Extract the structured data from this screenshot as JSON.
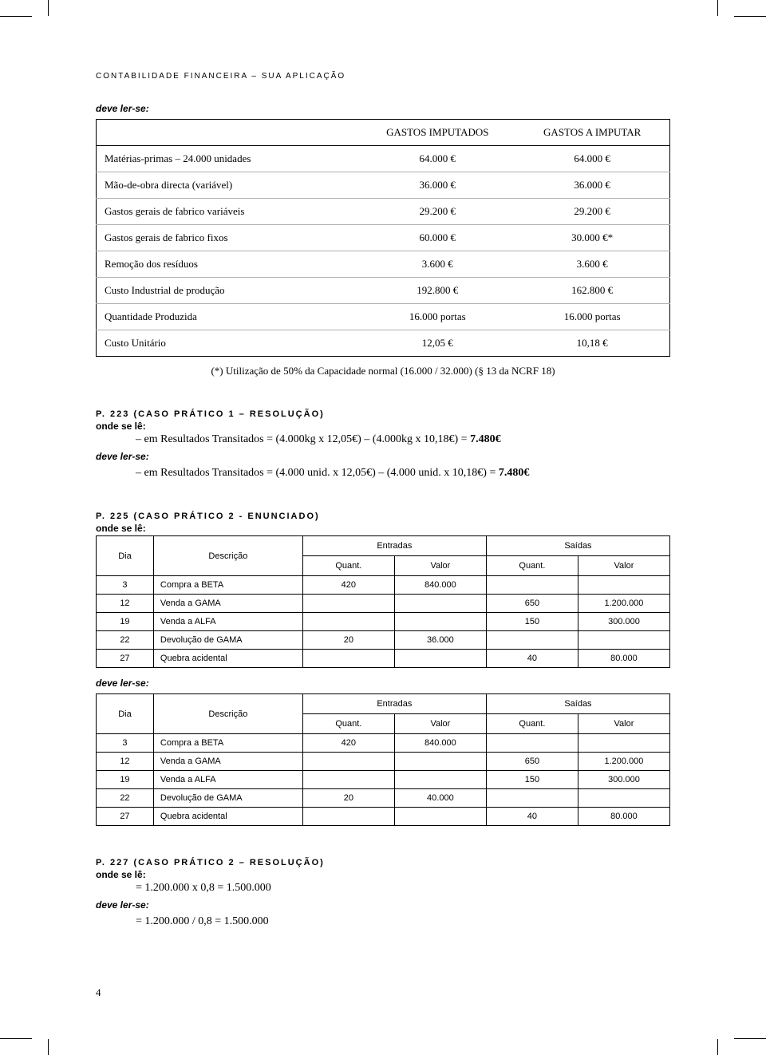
{
  "running_head": "CONTABILIDADE FINANCEIRA – SUA APLICAÇÃO",
  "deve_ler_se": "deve ler-se:",
  "onde_se_le": "onde se lê:",
  "page_number": "4",
  "table1": {
    "head_imputados": "GASTOS IMPUTADOS",
    "head_a_imputar": "GASTOS A IMPUTAR",
    "rows": [
      {
        "label": "Matérias-primas – 24.000 unidades",
        "a": "64.000 €",
        "b": "64.000 €"
      },
      {
        "label": "Mão-de-obra directa (variável)",
        "a": "36.000 €",
        "b": "36.000 €"
      },
      {
        "label": "Gastos gerais de fabrico variáveis",
        "a": "29.200 €",
        "b": "29.200 €"
      },
      {
        "label": "Gastos gerais de fabrico fixos",
        "a": "60.000 €",
        "b": "30.000 €*"
      },
      {
        "label": "Remoção dos resíduos",
        "a": "3.600 €",
        "b": "3.600 €"
      },
      {
        "label": "Custo Industrial de produção",
        "a": "192.800 €",
        "b": "162.800 €"
      },
      {
        "label": "Quantidade Produzida",
        "a": "16.000 portas",
        "b": "16.000 portas"
      },
      {
        "label": "Custo Unitário",
        "a": "12,05 €",
        "b": "10,18 €"
      }
    ],
    "footnote": "(*) Utilização de 50% da Capacidade normal (16.000 / 32.000) (§ 13 da NCRF 18)"
  },
  "p223": {
    "head": "P. 223 (CASO PRÁTICO 1 – RESOLUÇÃO)",
    "wrong": "– em Resultados Transitados = (4.000kg x 12,05€) – (4.000kg x 10,18€) = ",
    "wrong_b": "7.480€",
    "right": "– em Resultados Transitados = (4.000 unid. x 12,05€) – (4.000 unid. x 10,18€) = ",
    "right_b": "7.480€"
  },
  "p225": {
    "head": "P. 225 (CASO PRÁTICO 2 - ENUNCIADO)",
    "thead": {
      "dia": "Dia",
      "desc": "Descrição",
      "ent": "Entradas",
      "sai": "Saídas",
      "q": "Quant.",
      "v": "Valor"
    },
    "wrong_rows": [
      {
        "dia": "3",
        "desc": "Compra a BETA",
        "eq": "420",
        "ev": "840.000",
        "sq": "",
        "sv": ""
      },
      {
        "dia": "12",
        "desc": "Venda a GAMA",
        "eq": "",
        "ev": "",
        "sq": "650",
        "sv": "1.200.000"
      },
      {
        "dia": "19",
        "desc": "Venda a ALFA",
        "eq": "",
        "ev": "",
        "sq": "150",
        "sv": "300.000"
      },
      {
        "dia": "22",
        "desc": "Devolução de GAMA",
        "eq": "20",
        "ev": "36.000",
        "sq": "",
        "sv": ""
      },
      {
        "dia": "27",
        "desc": "Quebra acidental",
        "eq": "",
        "ev": "",
        "sq": "40",
        "sv": "80.000"
      }
    ],
    "right_rows": [
      {
        "dia": "3",
        "desc": "Compra a BETA",
        "eq": "420",
        "ev": "840.000",
        "sq": "",
        "sv": ""
      },
      {
        "dia": "12",
        "desc": "Venda a GAMA",
        "eq": "",
        "ev": "",
        "sq": "650",
        "sv": "1.200.000"
      },
      {
        "dia": "19",
        "desc": "Venda a ALFA",
        "eq": "",
        "ev": "",
        "sq": "150",
        "sv": "300.000"
      },
      {
        "dia": "22",
        "desc": "Devolução de GAMA",
        "eq": "20",
        "ev": "40.000",
        "sq": "",
        "sv": ""
      },
      {
        "dia": "27",
        "desc": "Quebra acidental",
        "eq": "",
        "ev": "",
        "sq": "40",
        "sv": "80.000"
      }
    ]
  },
  "p227": {
    "head": "P. 227 (CASO PRÁTICO 2 – RESOLUÇÃO)",
    "wrong": "= 1.200.000 x 0,8 = 1.500.000",
    "right": "= 1.200.000 / 0,8 = 1.500.000"
  }
}
